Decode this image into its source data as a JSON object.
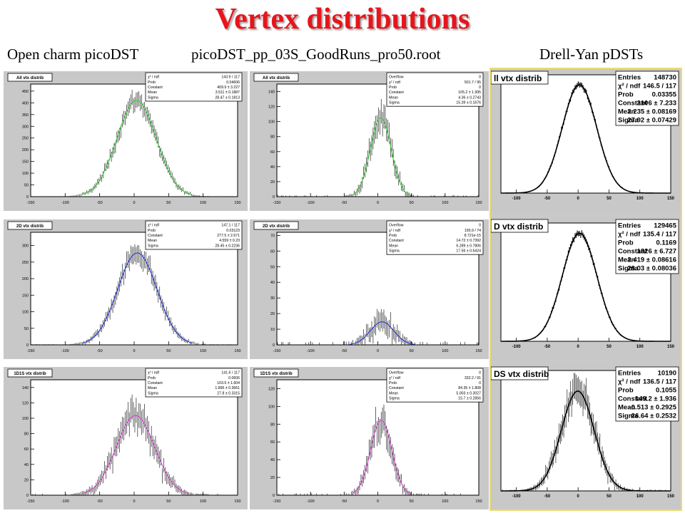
{
  "title": "Vertex distributions",
  "subtitles": [
    "Open charm picoDST",
    "picoDST_pp_03S_GoodRuns_pro50.root",
    "Drell-Yan pDSTs"
  ],
  "colors": {
    "title": "#e8141b",
    "hist": "#000000",
    "green_fit": "#33cc33",
    "blue_fit": "#1d2fd6",
    "magenta_fit": "#d13bd1",
    "pad": "#c8c8c8",
    "frame_border": "#e9dc73"
  },
  "chart_data": [
    {
      "type": "bar",
      "panel_title": "All vtx distrib",
      "xlim": [
        -150,
        150
      ],
      "ylim": [
        0,
        480
      ],
      "xticks": [
        -150,
        -100,
        -50,
        0,
        50,
        100,
        150
      ],
      "yticks": [
        0,
        50,
        100,
        150,
        200,
        250,
        300,
        350,
        400,
        450
      ],
      "fit": {
        "color": "green",
        "constant": 409.9,
        "mean": 3.511,
        "sigma": 28.47
      },
      "stats": [
        {
          "label": "χ² / ndf",
          "value": "143.9 / 117"
        },
        {
          "label": "Prob",
          "value": "0.04606"
        },
        {
          "label": "Constant",
          "value": "409.9 ± 3.227"
        },
        {
          "label": "Mean",
          "value": "3.511 ± 0.1887"
        },
        {
          "label": "Sigma",
          "value": "28.47 ± 0.1813"
        }
      ]
    },
    {
      "type": "bar",
      "panel_title": "All vtx distrib",
      "xlim": [
        -150,
        150
      ],
      "ylim": [
        0,
        150
      ],
      "xticks": [
        -150,
        -100,
        -50,
        0,
        50,
        100,
        150
      ],
      "yticks": [
        0,
        20,
        40,
        60,
        80,
        100,
        120,
        140
      ],
      "fit": {
        "color": "green",
        "constant": 105.2,
        "mean": 4.36,
        "sigma": 15.39
      },
      "stats": [
        {
          "label": "Overflow",
          "value": "0"
        },
        {
          "label": "χ² / ndf",
          "value": "501.7 / 95"
        },
        {
          "label": "Prob",
          "value": "0"
        },
        {
          "label": "Constant",
          "value": "105.2 ± 1.995"
        },
        {
          "label": "Mean",
          "value": "4.36 ± 0.2743"
        },
        {
          "label": "Sigma",
          "value": "15.39 ± 0.1676"
        }
      ]
    },
    {
      "type": "bar",
      "panel_title": "ll vtx distrib",
      "xlim": [
        -125,
        150
      ],
      "ylim": [
        0,
        2300
      ],
      "xticks": [
        -100,
        -50,
        0,
        50,
        100,
        150
      ],
      "yticks": [],
      "fit": {
        "color": "black",
        "constant": 2106,
        "mean": 2.235,
        "sigma": 27.92
      },
      "stats": [
        {
          "label": "Entries",
          "value": "148730"
        },
        {
          "label": "χ² / ndf",
          "value": "146.5 / 117"
        },
        {
          "label": "Prob",
          "value": "0.03355"
        },
        {
          "label": "Constant",
          "value": "2106 ± 7.233"
        },
        {
          "label": "Mean",
          "value": "2.235 ± 0.08169"
        },
        {
          "label": "Sigma",
          "value": "27.92 ± 0.07429"
        }
      ]
    },
    {
      "type": "bar",
      "panel_title": "2D vtx distrib",
      "xlim": [
        -150,
        150
      ],
      "ylim": [
        0,
        340
      ],
      "xticks": [
        -150,
        -100,
        -50,
        0,
        50,
        100,
        150
      ],
      "yticks": [
        0,
        50,
        100,
        150,
        200,
        250,
        300
      ],
      "fit": {
        "color": "blue",
        "constant": 277.5,
        "mean": 4.559,
        "sigma": 28.45
      },
      "stats": [
        {
          "label": "χ² / ndf",
          "value": "147.1 / 117"
        },
        {
          "label": "Prob",
          "value": "0.03123"
        },
        {
          "label": "Constant",
          "value": "277.5 ± 2.671"
        },
        {
          "label": "Mean",
          "value": "4.559 ± 0.23"
        },
        {
          "label": "Sigma",
          "value": "28.45 ± 0.2236"
        }
      ]
    },
    {
      "type": "bar",
      "panel_title": "2D vtx distrib",
      "xlim": [
        -150,
        150
      ],
      "ylim": [
        0,
        72
      ],
      "xticks": [
        -150,
        -100,
        -50,
        0,
        50,
        100,
        150
      ],
      "yticks": [
        0,
        10,
        20,
        30,
        40,
        50,
        60,
        70
      ],
      "fit": {
        "color": "blue",
        "constant": 14.72,
        "mean": 6.289,
        "sigma": 17.56
      },
      "stats": [
        {
          "label": "Overflow",
          "value": "0"
        },
        {
          "label": "χ² / ndf",
          "value": "195.9 / 74"
        },
        {
          "label": "Prob",
          "value": "8.721e-15"
        },
        {
          "label": "Constant",
          "value": "14.72 ± 0.7392"
        },
        {
          "label": "Mean",
          "value": "6.289 ± 0.7806"
        },
        {
          "label": "Sigma",
          "value": "17.56 ± 0.6424"
        }
      ]
    },
    {
      "type": "bar",
      "panel_title": "D vtx distrib",
      "xlim": [
        -125,
        150
      ],
      "ylim": [
        0,
        2000
      ],
      "xticks": [
        -100,
        -50,
        0,
        50,
        100,
        150
      ],
      "yticks": [],
      "fit": {
        "color": "black",
        "constant": 1826,
        "mean": 2.419,
        "sigma": 28.03
      },
      "stats": [
        {
          "label": "Entries",
          "value": "129465"
        },
        {
          "label": "χ² / ndf",
          "value": "135.4 / 117"
        },
        {
          "label": "Prob",
          "value": "0.1169"
        },
        {
          "label": "Constant",
          "value": "1826 ± 6.727"
        },
        {
          "label": "Mean",
          "value": "2.419 ± 0.08616"
        },
        {
          "label": "Sigma",
          "value": "28.03 ± 0.08036"
        }
      ]
    },
    {
      "type": "bar",
      "panel_title": "1D1S vtx distrib",
      "xlim": [
        -150,
        150
      ],
      "ylim": [
        0,
        150
      ],
      "xticks": [
        -150,
        -100,
        -50,
        0,
        50,
        100,
        150
      ],
      "yticks": [
        0,
        20,
        40,
        60,
        80,
        100,
        120,
        140
      ],
      "fit": {
        "color": "magenta",
        "constant": 103.5,
        "mean": 1.895,
        "sigma": 27.8
      },
      "stats": [
        {
          "label": "χ² / ndf",
          "value": "141.6 / 117"
        },
        {
          "label": "Prob",
          "value": "0.0606"
        },
        {
          "label": "Constant",
          "value": "103.5 ± 1.604"
        },
        {
          "label": "Mean",
          "value": "1.895 ± 0.3661"
        },
        {
          "label": "Sigma",
          "value": "27.8 ± 0.3315"
        }
      ]
    },
    {
      "type": "bar",
      "panel_title": "1D1S vtx distrib",
      "xlim": [
        -150,
        150
      ],
      "ylim": [
        0,
        130
      ],
      "xticks": [
        -150,
        -100,
        -50,
        0,
        50,
        100,
        150
      ],
      "yticks": [
        0,
        20,
        40,
        60,
        80,
        100,
        120
      ],
      "fit": {
        "color": "magenta",
        "constant": 84.35,
        "mean": 5.003,
        "sigma": 15.7
      },
      "stats": [
        {
          "label": "Overflow",
          "value": "0"
        },
        {
          "label": "χ² / ndf",
          "value": "332.2 / 91"
        },
        {
          "label": "Prob",
          "value": "0"
        },
        {
          "label": "Constant",
          "value": "84.35 ± 1.808"
        },
        {
          "label": "Mean",
          "value": "5.003 ± 0.3027"
        },
        {
          "label": "Sigma",
          "value": "15.7 ± 0.2856"
        }
      ]
    },
    {
      "type": "bar",
      "panel_title": "DS vtx distrib",
      "xlim": [
        -125,
        150
      ],
      "ylim": [
        0,
        180
      ],
      "xticks": [
        -100,
        -50,
        0,
        50,
        100,
        150
      ],
      "yticks": [],
      "fit": {
        "color": "black",
        "constant": 149.2,
        "mean": -0.513,
        "sigma": 26.64
      },
      "stats": [
        {
          "label": "Entries",
          "value": "10190"
        },
        {
          "label": "χ² / ndf",
          "value": "136.5 / 117"
        },
        {
          "label": "Prob",
          "value": "0.1055"
        },
        {
          "label": "Constant",
          "value": "149.2 ± 1.936"
        },
        {
          "label": "Mean",
          "value": "-0.513 ± 0.2925"
        },
        {
          "label": "Sigma",
          "value": "26.64 ± 0.2532"
        }
      ]
    }
  ]
}
